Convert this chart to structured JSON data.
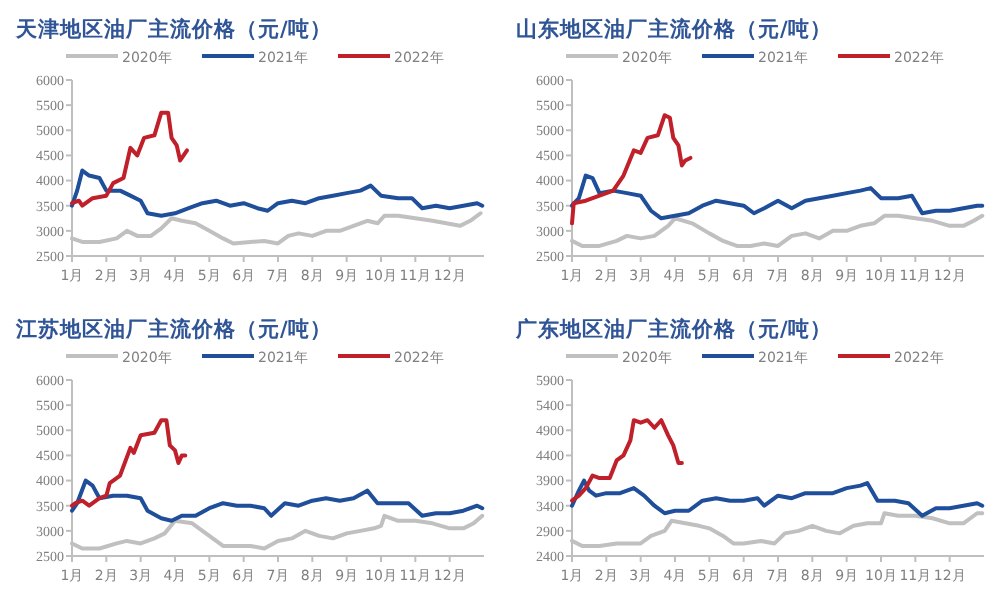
{
  "chart_data": [
    {
      "type": "line",
      "title": "天津地区油厂主流价格（元/吨）",
      "legend": "top",
      "grid": false,
      "xlim": [
        1,
        13
      ],
      "xticks": [
        {
          "value": 1,
          "label": "1月"
        },
        {
          "value": 2,
          "label": "2月"
        },
        {
          "value": 3,
          "label": "3月"
        },
        {
          "value": 4,
          "label": "4月"
        },
        {
          "value": 5,
          "label": "5月"
        },
        {
          "value": 6,
          "label": "6月"
        },
        {
          "value": 7,
          "label": "7月"
        },
        {
          "value": 8,
          "label": "8月"
        },
        {
          "value": 9,
          "label": "9月"
        },
        {
          "value": 10,
          "label": "10月"
        },
        {
          "value": 11,
          "label": "11月"
        },
        {
          "value": 12,
          "label": "12月"
        }
      ],
      "ylim": [
        2500,
        6000
      ],
      "yticks": [
        2500,
        3000,
        3500,
        4000,
        4500,
        5000,
        5500,
        6000
      ],
      "series": [
        {
          "name": "2020年",
          "color": "#c0c0c0",
          "x": [
            1,
            1.3,
            1.8,
            2.3,
            2.6,
            2.9,
            3.3,
            3.6,
            3.9,
            4.2,
            4.6,
            5.0,
            5.4,
            5.7,
            6.2,
            6.6,
            7.0,
            7.3,
            7.6,
            8.0,
            8.4,
            8.8,
            9.2,
            9.6,
            9.9,
            10.1,
            10.5,
            11.0,
            11.5,
            11.9,
            12.3,
            12.6,
            12.9
          ],
          "values": [
            2850,
            2780,
            2780,
            2850,
            3000,
            2900,
            2900,
            3050,
            3250,
            3200,
            3150,
            3000,
            2850,
            2750,
            2780,
            2800,
            2750,
            2900,
            2950,
            2900,
            3000,
            3000,
            3100,
            3200,
            3150,
            3300,
            3300,
            3250,
            3200,
            3150,
            3100,
            3200,
            3350
          ]
        },
        {
          "name": "2021年",
          "color": "#1f4e9a",
          "x": [
            1,
            1.15,
            1.3,
            1.5,
            1.8,
            2.0,
            2.4,
            2.7,
            3.0,
            3.2,
            3.6,
            4.0,
            4.4,
            4.8,
            5.2,
            5.6,
            6.0,
            6.4,
            6.7,
            7.0,
            7.4,
            7.8,
            8.2,
            8.6,
            9.0,
            9.4,
            9.7,
            10.0,
            10.5,
            10.9,
            11.2,
            11.6,
            12.0,
            12.4,
            12.8,
            12.95
          ],
          "values": [
            3500,
            3800,
            4200,
            4100,
            4050,
            3800,
            3800,
            3700,
            3600,
            3350,
            3300,
            3350,
            3450,
            3550,
            3600,
            3500,
            3550,
            3450,
            3400,
            3550,
            3600,
            3550,
            3650,
            3700,
            3750,
            3800,
            3900,
            3700,
            3650,
            3650,
            3450,
            3500,
            3450,
            3500,
            3550,
            3500
          ]
        },
        {
          "name": "2022年",
          "color": "#c0202a",
          "x": [
            1,
            1.2,
            1.3,
            1.6,
            2.0,
            2.2,
            2.5,
            2.7,
            2.9,
            3.1,
            3.4,
            3.6,
            3.8,
            3.9,
            4.05,
            4.15,
            4.3,
            4.35
          ],
          "values": [
            3550,
            3600,
            3500,
            3650,
            3700,
            3950,
            4050,
            4650,
            4500,
            4850,
            4900,
            5350,
            5350,
            4850,
            4700,
            4400,
            4550,
            4600
          ]
        }
      ]
    },
    {
      "type": "line",
      "title": "山东地区油厂主流价格（元/吨）",
      "legend": "top",
      "grid": false,
      "xlim": [
        1,
        13
      ],
      "xticks": [
        {
          "value": 1,
          "label": "1月"
        },
        {
          "value": 2,
          "label": "2月"
        },
        {
          "value": 3,
          "label": "3月"
        },
        {
          "value": 4,
          "label": "4月"
        },
        {
          "value": 5,
          "label": "5月"
        },
        {
          "value": 6,
          "label": "6月"
        },
        {
          "value": 7,
          "label": "7月"
        },
        {
          "value": 8,
          "label": "8月"
        },
        {
          "value": 9,
          "label": "9月"
        },
        {
          "value": 10,
          "label": "10月"
        },
        {
          "value": 11,
          "label": "11月"
        },
        {
          "value": 12,
          "label": "12月"
        }
      ],
      "ylim": [
        2500,
        6000
      ],
      "yticks": [
        2500,
        3000,
        3500,
        4000,
        4500,
        5000,
        5500,
        6000
      ],
      "series": [
        {
          "name": "2020年",
          "color": "#c0c0c0",
          "x": [
            1,
            1.3,
            1.8,
            2.3,
            2.6,
            3.0,
            3.4,
            3.8,
            4.0,
            4.5,
            5.0,
            5.4,
            5.8,
            6.2,
            6.6,
            7.0,
            7.4,
            7.8,
            8.2,
            8.6,
            9.0,
            9.4,
            9.8,
            10.1,
            10.5,
            11.0,
            11.5,
            12.0,
            12.4,
            12.7,
            12.95
          ],
          "values": [
            2800,
            2700,
            2700,
            2800,
            2900,
            2850,
            2900,
            3100,
            3250,
            3150,
            2950,
            2800,
            2700,
            2700,
            2750,
            2700,
            2900,
            2950,
            2850,
            3000,
            3000,
            3100,
            3150,
            3300,
            3300,
            3250,
            3200,
            3100,
            3100,
            3200,
            3300
          ]
        },
        {
          "name": "2021年",
          "color": "#1f4e9a",
          "x": [
            1,
            1.2,
            1.4,
            1.6,
            1.8,
            2.2,
            2.6,
            3.0,
            3.3,
            3.6,
            4.0,
            4.4,
            4.8,
            5.2,
            5.6,
            6.0,
            6.3,
            6.6,
            7.0,
            7.4,
            7.8,
            8.2,
            8.6,
            9.0,
            9.4,
            9.7,
            10.0,
            10.5,
            10.9,
            11.2,
            11.6,
            12.0,
            12.4,
            12.8,
            12.95
          ],
          "values": [
            3500,
            3650,
            4100,
            4050,
            3750,
            3800,
            3750,
            3700,
            3400,
            3250,
            3300,
            3350,
            3500,
            3600,
            3550,
            3500,
            3350,
            3450,
            3600,
            3450,
            3600,
            3650,
            3700,
            3750,
            3800,
            3850,
            3650,
            3650,
            3700,
            3350,
            3400,
            3400,
            3450,
            3500,
            3500
          ]
        },
        {
          "name": "2022年",
          "color": "#c0202a",
          "x": [
            1,
            1.05,
            1.4,
            1.8,
            2.2,
            2.5,
            2.8,
            3.0,
            3.2,
            3.5,
            3.7,
            3.85,
            3.95,
            4.1,
            4.2,
            4.3,
            4.45
          ],
          "values": [
            3150,
            3550,
            3600,
            3700,
            3800,
            4100,
            4600,
            4550,
            4850,
            4900,
            5300,
            5250,
            4850,
            4700,
            4300,
            4400,
            4450
          ]
        }
      ]
    },
    {
      "type": "line",
      "title": "江苏地区油厂主流价格（元/吨）",
      "legend": "top",
      "grid": false,
      "xlim": [
        1,
        13
      ],
      "xticks": [
        {
          "value": 1,
          "label": "1月"
        },
        {
          "value": 2,
          "label": "2月"
        },
        {
          "value": 3,
          "label": "3月"
        },
        {
          "value": 4,
          "label": "4月"
        },
        {
          "value": 5,
          "label": "5月"
        },
        {
          "value": 6,
          "label": "6月"
        },
        {
          "value": 7,
          "label": "7月"
        },
        {
          "value": 8,
          "label": "8月"
        },
        {
          "value": 9,
          "label": "9月"
        },
        {
          "value": 10,
          "label": "10月"
        },
        {
          "value": 11,
          "label": "11月"
        },
        {
          "value": 12,
          "label": "12月"
        }
      ],
      "ylim": [
        2500,
        6000
      ],
      "yticks": [
        2500,
        3000,
        3500,
        4000,
        4500,
        5000,
        5500,
        6000
      ],
      "series": [
        {
          "name": "2020年",
          "color": "#c0c0c0",
          "x": [
            1,
            1.3,
            1.8,
            2.3,
            2.6,
            3.0,
            3.4,
            3.7,
            4.0,
            4.5,
            5.0,
            5.4,
            5.8,
            6.2,
            6.6,
            7.0,
            7.4,
            7.8,
            8.2,
            8.6,
            9.0,
            9.4,
            9.8,
            10.0,
            10.1,
            10.5,
            11.0,
            11.5,
            12.0,
            12.4,
            12.7,
            12.95
          ],
          "values": [
            2750,
            2650,
            2650,
            2750,
            2800,
            2750,
            2850,
            2950,
            3200,
            3150,
            2900,
            2700,
            2700,
            2700,
            2650,
            2800,
            2850,
            3000,
            2900,
            2850,
            2950,
            3000,
            3050,
            3100,
            3300,
            3200,
            3200,
            3150,
            3050,
            3050,
            3150,
            3300
          ]
        },
        {
          "name": "2021年",
          "color": "#1f4e9a",
          "x": [
            1,
            1.15,
            1.4,
            1.6,
            1.8,
            2.2,
            2.6,
            3.0,
            3.2,
            3.6,
            3.9,
            4.2,
            4.6,
            5.0,
            5.4,
            5.8,
            6.2,
            6.6,
            6.8,
            7.2,
            7.6,
            8.0,
            8.4,
            8.8,
            9.2,
            9.6,
            9.9,
            10.4,
            10.8,
            11.2,
            11.6,
            12.0,
            12.4,
            12.8,
            12.95
          ],
          "values": [
            3400,
            3550,
            4000,
            3900,
            3650,
            3700,
            3700,
            3650,
            3400,
            3250,
            3200,
            3300,
            3300,
            3450,
            3550,
            3500,
            3500,
            3450,
            3300,
            3550,
            3500,
            3600,
            3650,
            3600,
            3650,
            3800,
            3550,
            3550,
            3550,
            3300,
            3350,
            3350,
            3400,
            3500,
            3450
          ]
        },
        {
          "name": "2022年",
          "color": "#c0202a",
          "x": [
            1,
            1.1,
            1.3,
            1.5,
            1.8,
            2.0,
            2.1,
            2.4,
            2.7,
            2.8,
            3.0,
            3.4,
            3.6,
            3.75,
            3.85,
            4.0,
            4.1,
            4.2,
            4.3
          ],
          "values": [
            3500,
            3550,
            3600,
            3500,
            3650,
            3700,
            3950,
            4100,
            4650,
            4550,
            4900,
            4950,
            5200,
            5200,
            4700,
            4600,
            4350,
            4500,
            4500
          ]
        }
      ]
    },
    {
      "type": "line",
      "title": "广东地区油厂主流价格（元/吨）",
      "legend": "top",
      "grid": false,
      "xlim": [
        1,
        13
      ],
      "xticks": [
        {
          "value": 1,
          "label": "1月"
        },
        {
          "value": 2,
          "label": "2月"
        },
        {
          "value": 3,
          "label": "3月"
        },
        {
          "value": 4,
          "label": "4月"
        },
        {
          "value": 5,
          "label": "5月"
        },
        {
          "value": 6,
          "label": "6月"
        },
        {
          "value": 7,
          "label": "7月"
        },
        {
          "value": 8,
          "label": "8月"
        },
        {
          "value": 9,
          "label": "9月"
        },
        {
          "value": 10,
          "label": "10月"
        },
        {
          "value": 11,
          "label": "11月"
        },
        {
          "value": 12,
          "label": "12月"
        }
      ],
      "ylim": [
        2400,
        5900
      ],
      "yticks": [
        2400,
        2900,
        3400,
        3900,
        4400,
        4900,
        5400,
        5900
      ],
      "series": [
        {
          "name": "2020年",
          "color": "#c0c0c0",
          "x": [
            1,
            1.3,
            1.8,
            2.3,
            2.7,
            3.0,
            3.3,
            3.7,
            3.9,
            4.3,
            4.7,
            5.0,
            5.4,
            5.7,
            6.0,
            6.5,
            6.9,
            7.2,
            7.6,
            8.0,
            8.4,
            8.8,
            9.2,
            9.6,
            10.0,
            10.1,
            10.5,
            11.0,
            11.5,
            12.0,
            12.4,
            12.8,
            12.95
          ],
          "values": [
            2700,
            2600,
            2600,
            2650,
            2650,
            2650,
            2800,
            2900,
            3100,
            3050,
            3000,
            2950,
            2800,
            2650,
            2650,
            2700,
            2650,
            2850,
            2900,
            3000,
            2900,
            2850,
            3000,
            3050,
            3050,
            3250,
            3200,
            3200,
            3150,
            3050,
            3050,
            3250,
            3250
          ]
        },
        {
          "name": "2021年",
          "color": "#1f4e9a",
          "x": [
            1,
            1.2,
            1.35,
            1.5,
            1.7,
            2.0,
            2.4,
            2.8,
            3.1,
            3.4,
            3.7,
            4.0,
            4.4,
            4.8,
            5.2,
            5.6,
            6.0,
            6.4,
            6.6,
            7.0,
            7.4,
            7.8,
            8.2,
            8.6,
            9.0,
            9.4,
            9.6,
            9.9,
            10.4,
            10.8,
            11.2,
            11.6,
            12.0,
            12.4,
            12.8,
            12.95
          ],
          "values": [
            3400,
            3700,
            3900,
            3700,
            3600,
            3650,
            3650,
            3750,
            3600,
            3400,
            3250,
            3300,
            3300,
            3500,
            3550,
            3500,
            3500,
            3550,
            3400,
            3600,
            3550,
            3650,
            3650,
            3650,
            3750,
            3800,
            3850,
            3500,
            3500,
            3450,
            3200,
            3350,
            3350,
            3400,
            3450,
            3400
          ]
        },
        {
          "name": "2022年",
          "color": "#c0202a",
          "x": [
            1,
            1.2,
            1.4,
            1.6,
            1.8,
            2.1,
            2.3,
            2.5,
            2.7,
            2.8,
            3.0,
            3.2,
            3.4,
            3.6,
            3.8,
            3.95,
            4.1,
            4.2
          ],
          "values": [
            3500,
            3600,
            3750,
            4000,
            3950,
            3950,
            4300,
            4400,
            4700,
            5100,
            5050,
            5100,
            4950,
            5100,
            4800,
            4600,
            4250,
            4250
          ]
        }
      ]
    }
  ]
}
